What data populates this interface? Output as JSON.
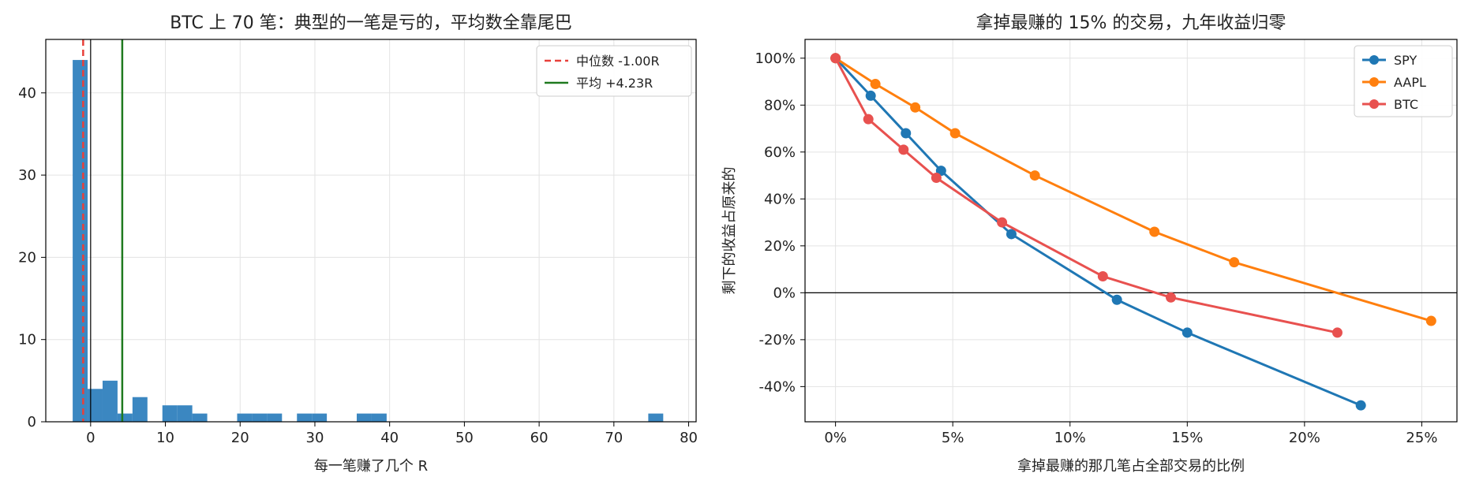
{
  "chart_data": [
    {
      "type": "bar",
      "title": "BTC 上 70 笔：典型的一笔是亏的，平均数全靠尾巴",
      "xlabel": "每一笔赚了几个 R",
      "ylabel": "",
      "xlim": [
        -6,
        81
      ],
      "ylim": [
        0,
        46.5
      ],
      "xticks": [
        0,
        10,
        20,
        30,
        40,
        50,
        60,
        70,
        80
      ],
      "yticks": [
        0,
        10,
        20,
        30,
        40
      ],
      "grid": true,
      "bar_color": "#3b87c1",
      "bins": [
        {
          "x0": -2.4,
          "x1": -0.4,
          "count": 44
        },
        {
          "x0": -0.4,
          "x1": 1.6,
          "count": 4
        },
        {
          "x0": 1.6,
          "x1": 3.6,
          "count": 5
        },
        {
          "x0": 3.6,
          "x1": 5.6,
          "count": 1
        },
        {
          "x0": 5.6,
          "x1": 7.6,
          "count": 3
        },
        {
          "x0": 9.6,
          "x1": 11.6,
          "count": 2
        },
        {
          "x0": 11.6,
          "x1": 13.6,
          "count": 2
        },
        {
          "x0": 13.6,
          "x1": 15.6,
          "count": 1
        },
        {
          "x0": 19.6,
          "x1": 21.6,
          "count": 1
        },
        {
          "x0": 21.6,
          "x1": 23.6,
          "count": 1
        },
        {
          "x0": 23.6,
          "x1": 25.6,
          "count": 1
        },
        {
          "x0": 27.6,
          "x1": 29.6,
          "count": 1
        },
        {
          "x0": 29.6,
          "x1": 31.6,
          "count": 1
        },
        {
          "x0": 35.6,
          "x1": 37.6,
          "count": 1
        },
        {
          "x0": 37.6,
          "x1": 39.6,
          "count": 1
        },
        {
          "x0": 74.6,
          "x1": 76.6,
          "count": 1
        }
      ],
      "reference_lines": [
        {
          "x": 0,
          "color": "#000000",
          "style": "solid"
        },
        {
          "x": -1.0,
          "color": "#e8403a",
          "style": "dashed",
          "label": "中位数 -1.00R"
        },
        {
          "x": 4.23,
          "color": "#1f7a1f",
          "style": "solid",
          "label": "平均 +4.23R"
        }
      ],
      "legend": {
        "placement": "top-right",
        "entries": [
          {
            "label": "中位数 -1.00R",
            "color": "#e8403a",
            "style": "dashed"
          },
          {
            "label": "平均 +4.23R",
            "color": "#1f7a1f",
            "style": "solid"
          }
        ]
      }
    },
    {
      "type": "line",
      "title": "拿掉最赚的 15% 的交易，九年收益归零",
      "xlabel": "拿掉最赚的那几笔占全部交易的比例",
      "ylabel": "剩下的收益占原来的",
      "xlim": [
        -1.3,
        26.5
      ],
      "ylim": [
        -55,
        108
      ],
      "xticks": [
        0,
        5,
        10,
        15,
        20,
        25
      ],
      "xtick_labels": [
        "0%",
        "5%",
        "10%",
        "15%",
        "20%",
        "25%"
      ],
      "yticks": [
        -40,
        -20,
        0,
        20,
        40,
        60,
        80,
        100
      ],
      "ytick_labels": [
        "-40%",
        "-20%",
        "0%",
        "20%",
        "40%",
        "60%",
        "80%",
        "100%"
      ],
      "grid": true,
      "zero_line": true,
      "legend": {
        "placement": "top-right"
      },
      "series": [
        {
          "name": "SPY",
          "color": "#1f77b4",
          "x": [
            0,
            1.5,
            3.0,
            4.5,
            7.5,
            12.0,
            15.0,
            22.4
          ],
          "y": [
            100,
            84,
            68,
            52,
            25,
            -3,
            -17,
            -48
          ]
        },
        {
          "name": "AAPL",
          "color": "#ff7f0e",
          "x": [
            0,
            1.7,
            3.4,
            5.1,
            8.5,
            13.6,
            17.0,
            25.4
          ],
          "y": [
            100,
            89,
            79,
            68,
            50,
            26,
            13,
            -12
          ]
        },
        {
          "name": "BTC",
          "color": "#e8514f",
          "x": [
            0,
            1.4,
            2.9,
            4.3,
            7.1,
            11.4,
            14.3,
            21.4
          ],
          "y": [
            100,
            74,
            61,
            49,
            30,
            7,
            -2,
            -17
          ]
        }
      ]
    }
  ]
}
